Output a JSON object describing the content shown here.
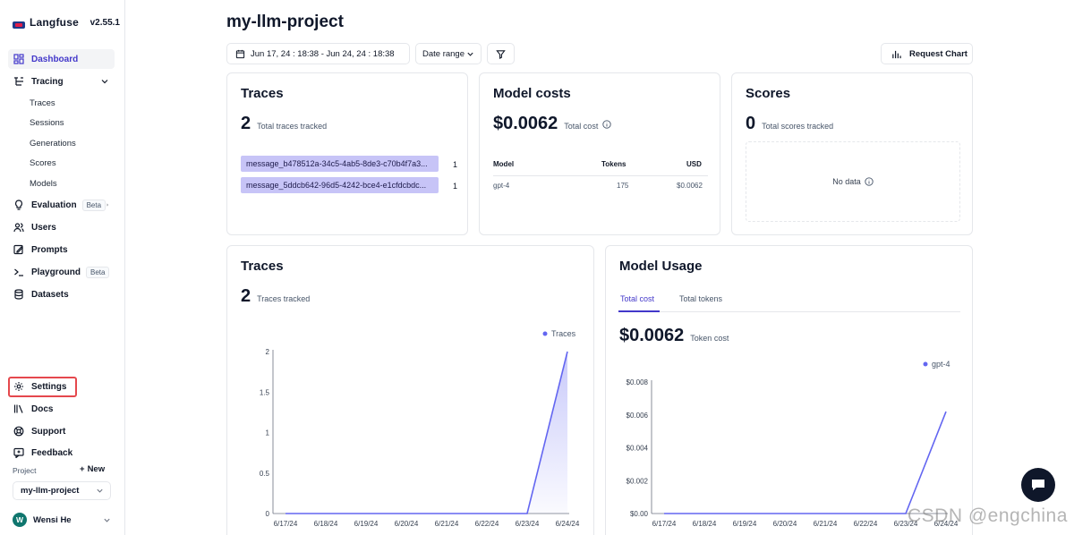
{
  "app": {
    "name": "Langfuse",
    "version": "v2.55.1"
  },
  "sidebar": {
    "nav": [
      {
        "label": "Dashboard",
        "icon": "dashboard-icon"
      },
      {
        "label": "Tracing",
        "icon": "tracing-icon"
      },
      {
        "label": "Evaluation",
        "icon": "lightbulb-icon",
        "badge": "Beta"
      },
      {
        "label": "Users",
        "icon": "users-icon"
      },
      {
        "label": "Prompts",
        "icon": "prompts-icon"
      },
      {
        "label": "Playground",
        "icon": "terminal-icon",
        "badge": "Beta"
      },
      {
        "label": "Datasets",
        "icon": "database-icon"
      },
      {
        "label": "Settings",
        "icon": "gear-icon"
      },
      {
        "label": "Docs",
        "icon": "book-icon"
      },
      {
        "label": "Support",
        "icon": "lifebuoy-icon"
      },
      {
        "label": "Feedback",
        "icon": "feedback-icon"
      }
    ],
    "tracing_sub": [
      "Traces",
      "Sessions",
      "Generations",
      "Scores",
      "Models"
    ],
    "project_label": "Project",
    "new_label": "New",
    "project_name": "my-llm-project",
    "user": {
      "initial": "W",
      "name": "Wensi He"
    }
  },
  "header": {
    "title": "my-llm-project",
    "date_range": "Jun 17, 24 : 18:38 - Jun 24, 24 : 18:38",
    "date_select": "Date range",
    "request_chart": "Request Chart"
  },
  "traces_card": {
    "title": "Traces",
    "count": "2",
    "caption": "Total traces tracked",
    "rows": [
      {
        "name": "message_b478512a-34c5-4ab5-8de3-c70b4f7a3...",
        "count": "1"
      },
      {
        "name": "message_5ddcb642-96d5-4242-bce4-e1cfdcbdc...",
        "count": "1"
      }
    ]
  },
  "costs_card": {
    "title": "Model costs",
    "total": "$0.0062",
    "caption": "Total cost",
    "headers": [
      "Model",
      "Tokens",
      "USD"
    ],
    "row": {
      "model": "gpt-4",
      "tokens": "175",
      "usd": "$0.0062"
    }
  },
  "scores_card": {
    "title": "Scores",
    "count": "0",
    "caption": "Total scores tracked",
    "empty": "No data"
  },
  "traces_chart_card": {
    "title": "Traces",
    "count": "2",
    "caption": "Traces tracked",
    "legend": "Traces"
  },
  "usage_card": {
    "title": "Model Usage",
    "tabs": [
      "Total cost",
      "Total tokens"
    ],
    "total": "$0.0062",
    "caption": "Token cost",
    "legend": "gpt-4"
  },
  "watermark": "CSDN @engchina",
  "colors": {
    "accent": "#6366f1",
    "active_nav": "#4338ca",
    "trace_bar": "#c7c4f7",
    "highlight": "#e5484d"
  },
  "chart_data": [
    {
      "type": "area",
      "x": [
        "6/17/24",
        "6/18/24",
        "6/19/24",
        "6/20/24",
        "6/21/24",
        "6/22/24",
        "6/23/24",
        "6/24/24"
      ],
      "series": [
        {
          "name": "Traces",
          "values": [
            0,
            0,
            0,
            0,
            0,
            0,
            0,
            2
          ]
        }
      ],
      "yticks": [
        "0",
        "0.5",
        "1",
        "1.5",
        "2"
      ],
      "ylim": [
        0,
        2
      ],
      "legend": "top-right"
    },
    {
      "type": "line",
      "x": [
        "6/17/24",
        "6/18/24",
        "6/19/24",
        "6/20/24",
        "6/21/24",
        "6/22/24",
        "6/23/24",
        "6/24/24"
      ],
      "series": [
        {
          "name": "gpt-4",
          "values": [
            0,
            0,
            0,
            0,
            0,
            0,
            0,
            0.0062
          ]
        }
      ],
      "yticks": [
        "$0.00",
        "$0.002",
        "$0.004",
        "$0.006",
        "$0.008"
      ],
      "ylim": [
        0,
        0.008
      ],
      "legend": "top-right"
    }
  ]
}
